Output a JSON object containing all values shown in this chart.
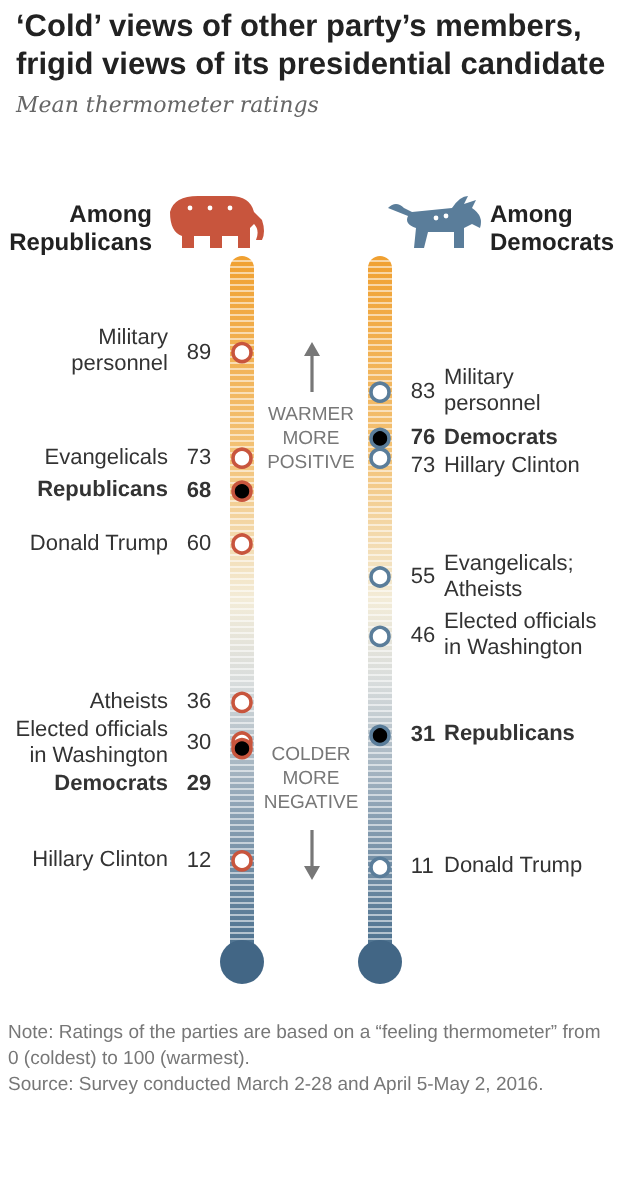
{
  "chart_data": [
    {
      "type": "other",
      "title": "‘Cold’ views of other party’s members, frigid views of its presidential candidate",
      "subtitle": "Mean thermometer ratings",
      "data_labels": true,
      "categories": [
        "Military personnel",
        "Evangelicals",
        "Republicans",
        "Donald Trump",
        "Atheists",
        "Elected officials in Washington",
        "Democrats",
        "Hillary Clinton"
      ],
      "series": [
        {
          "name": "Among Republicans",
          "color": "#c8553d",
          "values": [
            89,
            73,
            68,
            60,
            36,
            30,
            29,
            12
          ],
          "colors": [
            "#c8553d",
            "#c8553d",
            "#000000",
            "#c8553d",
            "#c8553d",
            "#c8553d",
            "#000000",
            "#c8553d"
          ]
        }
      ],
      "annotations": [
        "WARMER MORE POSITIVE",
        "COLDER MORE NEGATIVE"
      ]
    },
    {
      "type": "other",
      "data_labels": true,
      "categories": [
        "Military personnel",
        "Democrats",
        "Hillary Clinton",
        "Evangelicals; Atheists",
        "Elected officials in Washington",
        "Republicans",
        "Donald Trump"
      ],
      "series": [
        {
          "name": "Among Democrats",
          "color": "#5a7d9a",
          "values": [
            83,
            76,
            73,
            55,
            46,
            31,
            11
          ],
          "colors": [
            "#5a7d9a",
            "#000000",
            "#5a7d9a",
            "#5a7d9a",
            "#5a7d9a",
            "#000000",
            "#5a7d9a"
          ]
        }
      ],
      "annotations": [
        "Note: Ratings of the parties are based on a “feeling thermometer” from 0 (coldest) to 100 (warmest).",
        "Source: Survey conducted March 2-28 and April 5-May 2, 2016."
      ]
    }
  ]
}
